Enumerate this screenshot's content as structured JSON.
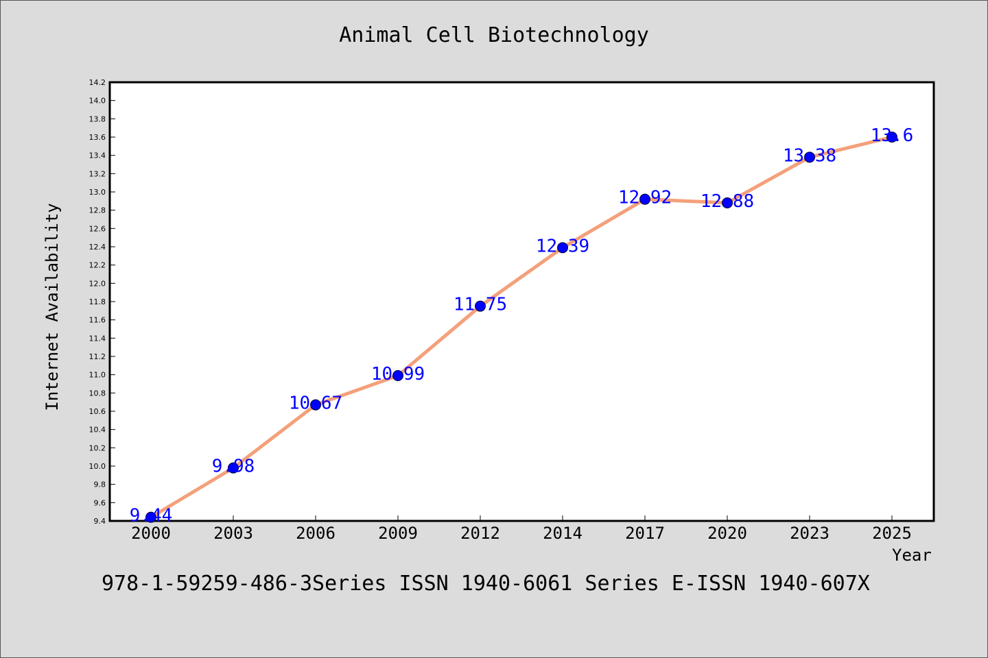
{
  "chart_data": {
    "type": "line",
    "title": "Animal Cell Biotechnology",
    "xlabel": "Year",
    "ylabel": "Internet Availability",
    "categories": [
      "2000",
      "2003",
      "2006",
      "2009",
      "2012",
      "2014",
      "2017",
      "2020",
      "2023",
      "2025"
    ],
    "series": [
      {
        "values": [
          9.44,
          9.98,
          10.67,
          10.99,
          11.75,
          12.39,
          12.92,
          12.88,
          13.38,
          13.6
        ],
        "labels": [
          "9.44",
          "9.98",
          "10.67",
          "10.99",
          "11.75",
          "12.39",
          "12.92",
          "12.88",
          "13.38",
          "13.6"
        ]
      }
    ],
    "ylim": [
      9.4,
      14.2
    ],
    "yticks": [
      "9.4",
      "9.6",
      "9.8",
      "10.0",
      "10.2",
      "10.4",
      "10.6",
      "10.8",
      "11.0",
      "11.2",
      "11.4",
      "11.6",
      "11.8",
      "12.0",
      "12.2",
      "12.4",
      "12.6",
      "12.8",
      "13.0",
      "13.2",
      "13.4",
      "13.6",
      "13.8",
      "14.0",
      "14.2"
    ],
    "grid": false,
    "legend": "none",
    "colors": {
      "line": "#f4a07a",
      "marker": "#0000ff",
      "label": "#0000ff",
      "background": "#dcdcdc",
      "plot_background": "#ffffff"
    }
  },
  "footer": {
    "text": "978-1-59259-486-3Series ISSN 1940-6061 Series E-ISSN 1940-607X"
  }
}
